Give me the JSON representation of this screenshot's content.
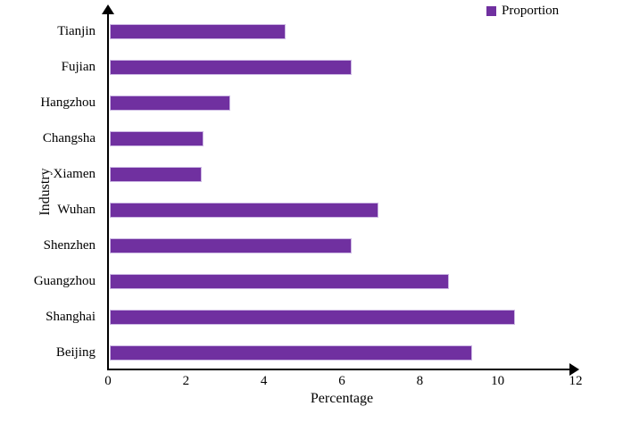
{
  "chart_data": {
    "type": "bar",
    "orientation": "horizontal",
    "title": "",
    "xlabel": "Percentage",
    "ylabel": "Industry",
    "legend": [
      "Proportion"
    ],
    "legend_position": "top-right",
    "categories_top_to_bottom": [
      "Tianjin",
      "Fujian",
      "Hangzhou",
      "Changsha",
      "Xiamen",
      "Wuhan",
      "Shenzhen",
      "Guangzhou",
      "Shanghai",
      "Beijing"
    ],
    "series": [
      {
        "name": "Proportion",
        "values": [
          4.5,
          6.2,
          3.1,
          2.4,
          2.35,
          6.9,
          6.2,
          8.7,
          10.4,
          9.3
        ]
      }
    ],
    "xlim": [
      0,
      12
    ],
    "xticks": [
      0,
      2,
      4,
      6,
      8,
      10,
      12
    ],
    "grid": false,
    "bar_color": "#7030A0",
    "bar_border_color": "#cdb9e4",
    "axis_color": "#000000",
    "text_color": "#000000",
    "background_color": "#ffffff"
  }
}
